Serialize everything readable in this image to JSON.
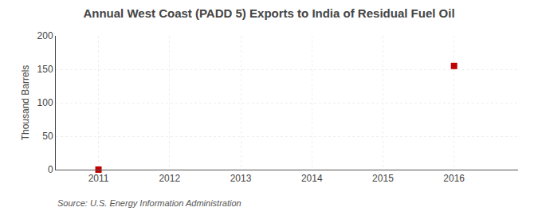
{
  "chart_data": {
    "type": "scatter",
    "title": "Annual West Coast (PADD 5) Exports to India of Residual Fuel Oil",
    "y_label": "Thousand Barrels",
    "annotations": [
      "Source: U.S. Energy Information Administration"
    ],
    "x": [
      2011,
      2016
    ],
    "values": [
      0,
      155
    ],
    "color": "#c00000",
    "marker": "square",
    "xlim": [
      2010.4,
      2016.9
    ],
    "xticks": [
      2011,
      2012,
      2013,
      2014,
      2015,
      2016
    ],
    "ylim": [
      0,
      200
    ],
    "yticks": [
      0,
      50,
      100,
      150,
      200
    ],
    "grid": true
  }
}
